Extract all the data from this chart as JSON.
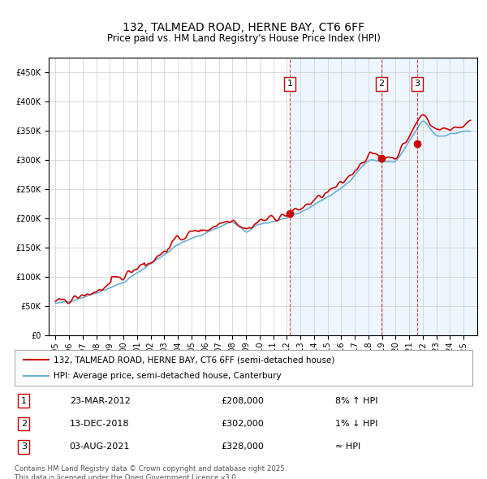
{
  "title1": "132, TALMEAD ROAD, HERNE BAY, CT6 6FF",
  "title2": "Price paid vs. HM Land Registry's House Price Index (HPI)",
  "legend_line1": "132, TALMEAD ROAD, HERNE BAY, CT6 6FF (semi-detached house)",
  "legend_line2": "HPI: Average price, semi-detached house, Canterbury",
  "transactions": [
    {
      "num": 1,
      "date": "23-MAR-2012",
      "price": 208000,
      "hpi_diff": "8% ↑ HPI",
      "year": 2012.22
    },
    {
      "num": 2,
      "date": "13-DEC-2018",
      "price": 302000,
      "hpi_diff": "1% ↓ HPI",
      "year": 2018.95
    },
    {
      "num": 3,
      "date": "03-AUG-2021",
      "price": 328000,
      "hpi_diff": "≈ HPI",
      "year": 2021.58
    }
  ],
  "footnote": "Contains HM Land Registry data © Crown copyright and database right 2025.\nThis data is licensed under the Open Government Licence v3.0.",
  "hpi_color": "#6baed6",
  "price_color": "#cc0000",
  "bg_color": "#ddeeff",
  "grid_color": "#cccccc",
  "highlight_bg": "#ddeeff",
  "ylim": [
    0,
    475000
  ],
  "yticks": [
    0,
    50000,
    100000,
    150000,
    200000,
    250000,
    300000,
    350000,
    400000,
    450000
  ]
}
